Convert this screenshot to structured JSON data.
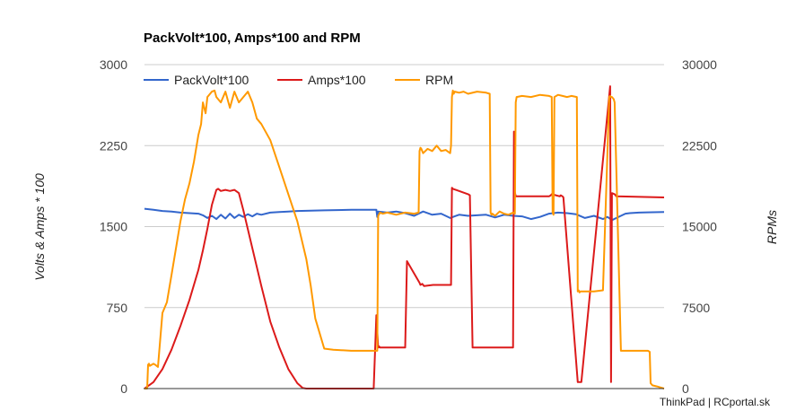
{
  "chart_data": {
    "type": "line",
    "title": "PackVolt*100, Amps*100 and RPM",
    "ylabel": "Volts & Amps * 100",
    "y2label": "RPMs",
    "ylim": [
      0,
      3000
    ],
    "y2lim": [
      0,
      30000
    ],
    "yticks": [
      "0",
      "750",
      "1500",
      "2250",
      "3000"
    ],
    "y2ticks": [
      "0",
      "7500",
      "15000",
      "22500",
      "30000"
    ],
    "grid": true,
    "legend_position": "top",
    "credit": "ThinkPad | RCportal.sk",
    "x_range": [
      0,
      578
    ],
    "series": [
      {
        "name": "PackVolt*100",
        "axis": "left",
        "color": "#3366cc",
        "x": [
          0,
          10,
          20,
          30,
          40,
          50,
          60,
          65,
          70,
          75,
          80,
          85,
          90,
          95,
          100,
          105,
          110,
          115,
          120,
          125,
          130,
          140,
          150,
          160,
          170,
          200,
          230,
          258,
          259,
          260,
          270,
          280,
          290,
          300,
          310,
          320,
          330,
          340,
          350,
          360,
          370,
          380,
          390,
          400,
          410,
          420,
          430,
          440,
          450,
          460,
          470,
          480,
          490,
          500,
          510,
          515,
          520,
          525,
          530,
          535,
          540,
          550,
          560,
          578
        ],
        "y": [
          1665,
          1655,
          1645,
          1640,
          1630,
          1625,
          1620,
          1605,
          1580,
          1600,
          1570,
          1610,
          1575,
          1620,
          1580,
          1610,
          1590,
          1615,
          1595,
          1620,
          1610,
          1630,
          1635,
          1640,
          1645,
          1650,
          1655,
          1655,
          1590,
          1640,
          1630,
          1640,
          1625,
          1600,
          1640,
          1610,
          1620,
          1580,
          1610,
          1600,
          1605,
          1610,
          1585,
          1610,
          1600,
          1595,
          1570,
          1590,
          1620,
          1630,
          1625,
          1615,
          1580,
          1600,
          1570,
          1590,
          1560,
          1580,
          1600,
          1620,
          1625,
          1630,
          1632,
          1635
        ]
      },
      {
        "name": "Amps*100",
        "axis": "left",
        "color": "#dc1a1a",
        "x": [
          0,
          5,
          10,
          20,
          30,
          40,
          50,
          60,
          65,
          70,
          75,
          80,
          82,
          85,
          90,
          95,
          100,
          105,
          110,
          120,
          130,
          140,
          150,
          160,
          170,
          176,
          180,
          255,
          258,
          260,
          261,
          262,
          264,
          290,
          292,
          306,
          307,
          309,
          310,
          311,
          321,
          341,
          342,
          343,
          360,
          362,
          365,
          380,
          383,
          385,
          386,
          410,
          411,
          412,
          413,
          450,
          452,
          453,
          462,
          463,
          465,
          466,
          482,
          483,
          484,
          485,
          486,
          518,
          519,
          520,
          523,
          525,
          578
        ],
        "y": [
          0,
          30,
          60,
          180,
          360,
          580,
          820,
          1100,
          1280,
          1480,
          1700,
          1840,
          1850,
          1830,
          1840,
          1830,
          1840,
          1810,
          1650,
          1300,
          950,
          620,
          380,
          180,
          50,
          5,
          0,
          0,
          680,
          380,
          390,
          380,
          380,
          380,
          1180,
          980,
          960,
          970,
          960,
          950,
          960,
          960,
          1860,
          1850,
          1800,
          1790,
          380,
          380,
          380,
          380,
          380,
          380,
          2380,
          1820,
          1780,
          1780,
          1790,
          1800,
          1780,
          1790,
          1780,
          1770,
          60,
          60,
          60,
          60,
          60,
          2800,
          60,
          1810,
          1800,
          1780,
          1770
        ]
      },
      {
        "name": "RPM",
        "axis": "right",
        "color": "#ff9900",
        "x": [
          0,
          3,
          4,
          5,
          6,
          8,
          10,
          12,
          15,
          20,
          25,
          30,
          35,
          40,
          45,
          50,
          55,
          60,
          63,
          65,
          68,
          70,
          75,
          78,
          80,
          85,
          90,
          95,
          100,
          105,
          110,
          115,
          120,
          125,
          130,
          140,
          150,
          160,
          170,
          180,
          185,
          190,
          200,
          210,
          230,
          258,
          259,
          260,
          262,
          265,
          270,
          280,
          290,
          300,
          305,
          306,
          307,
          308,
          310,
          315,
          320,
          325,
          330,
          335,
          340,
          341,
          342,
          343,
          344,
          345,
          350,
          355,
          360,
          370,
          380,
          384,
          385,
          386,
          387,
          390,
          395,
          400,
          405,
          410,
          412,
          413,
          414,
          420,
          430,
          440,
          450,
          453,
          454,
          455,
          456,
          460,
          465,
          470,
          475,
          481,
          482,
          483,
          484,
          485,
          490,
          500,
          510,
          517,
          518,
          519,
          520,
          522,
          523,
          530,
          540,
          550,
          560,
          562,
          563,
          565,
          570,
          578
        ],
        "y": [
          0,
          0,
          2200,
          2300,
          2100,
          2200,
          2300,
          2200,
          2000,
          7000,
          8000,
          10500,
          13000,
          15500,
          17500,
          19000,
          21000,
          23500,
          24500,
          26500,
          25500,
          27000,
          27500,
          27600,
          27000,
          26500,
          27500,
          26000,
          27500,
          26500,
          27000,
          27500,
          26500,
          25000,
          24500,
          23000,
          20500,
          18000,
          15500,
          12000,
          9500,
          6500,
          3700,
          3600,
          3500,
          3500,
          3500,
          16000,
          16300,
          16200,
          16300,
          16100,
          16300,
          16200,
          16300,
          22000,
          22300,
          22200,
          21800,
          22200,
          22000,
          22500,
          22000,
          22100,
          21800,
          22500,
          27000,
          27600,
          27300,
          27500,
          27400,
          27500,
          27300,
          27500,
          27400,
          27300,
          16300,
          16100,
          16200,
          16000,
          16400,
          16200,
          16100,
          16300,
          16200,
          26500,
          27000,
          27100,
          27000,
          27200,
          27100,
          27000,
          16300,
          16100,
          27000,
          27200,
          27100,
          27000,
          27100,
          27000,
          9000,
          9100,
          8900,
          9000,
          9000,
          9000,
          9100,
          27000,
          27100,
          27000,
          27000,
          26800,
          26500,
          3500,
          3500,
          3500,
          3500,
          3400,
          500,
          300,
          200,
          0
        ]
      }
    ]
  }
}
